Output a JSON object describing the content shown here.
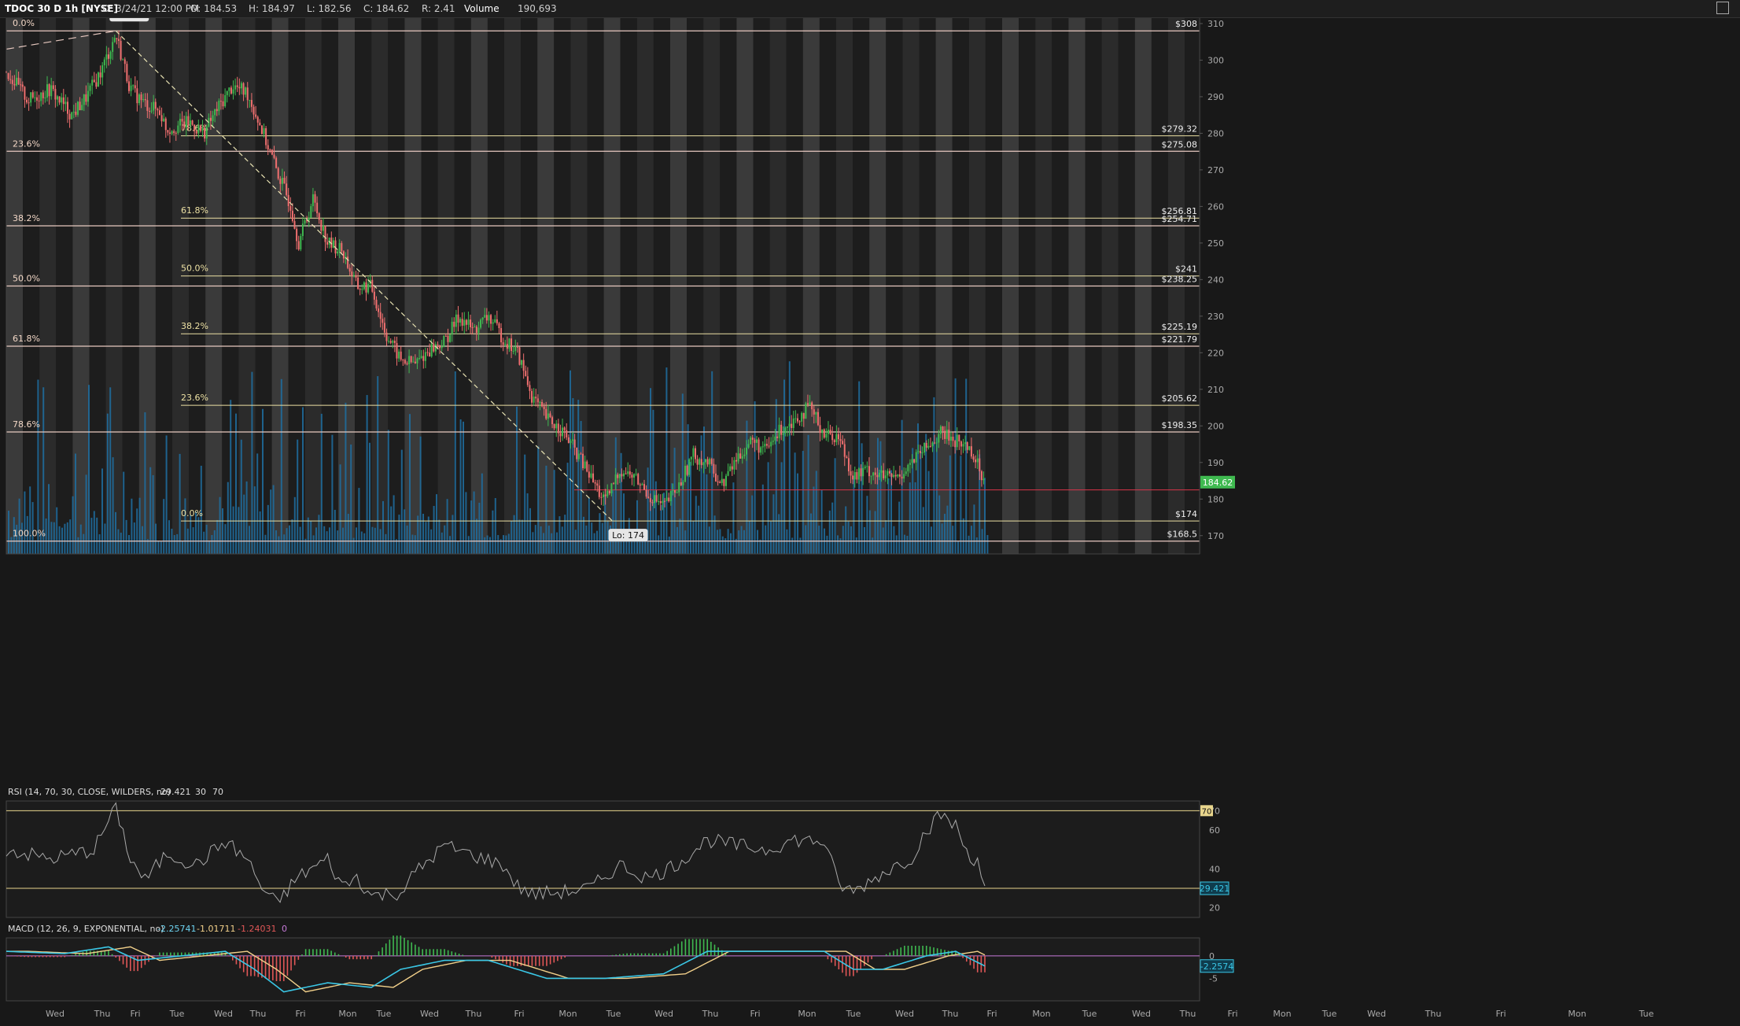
{
  "header": {
    "symbol": "TDOC 30 D 1h [NYSE]",
    "date": "D: 3/24/21 12:00 PM",
    "open": "O: 184.53",
    "high": "H: 184.97",
    "low": "L: 182.56",
    "close": "C: 184.62",
    "range": "R: 2.41",
    "volume_label": "Volume",
    "volume_value": "190,693"
  },
  "chart_data": {
    "type": "candlestick",
    "price_axis": {
      "ylim": [
        165,
        313
      ],
      "ticks": [
        "310",
        "300",
        "290",
        "280",
        "270",
        "260",
        "250",
        "240",
        "230",
        "220",
        "210",
        "200",
        "190",
        "180",
        "170"
      ]
    },
    "x_day_labels": [
      "Wed",
      "Thu",
      "Fri",
      "Tue",
      "Wed",
      "Thu",
      "Fri",
      "Mon",
      "Tue",
      "Wed",
      "Thu",
      "Fri",
      "Mon",
      "Tue",
      "Wed",
      "Thu",
      "Fri",
      "Mon",
      "Tue",
      "Wed",
      "Thu",
      "Fri",
      "Mon",
      "Tue",
      "Wed",
      "Thu",
      "Fri",
      "Mon",
      "Tue",
      "Wed",
      "Thu",
      "Fri",
      "Mon",
      "Tue"
    ],
    "price_path": [
      [
        0,
        297
      ],
      [
        3,
        289
      ],
      [
        6,
        292
      ],
      [
        9,
        285
      ],
      [
        11,
        290
      ],
      [
        13,
        297
      ],
      [
        15,
        307
      ],
      [
        17,
        292
      ],
      [
        19,
        288
      ],
      [
        21,
        286
      ],
      [
        22,
        281
      ],
      [
        25,
        283
      ],
      [
        27,
        280
      ],
      [
        29,
        287
      ],
      [
        31,
        293
      ],
      [
        33,
        291
      ],
      [
        35,
        281
      ],
      [
        37,
        270
      ],
      [
        39,
        260
      ],
      [
        40,
        250
      ],
      [
        42,
        262
      ],
      [
        44,
        250
      ],
      [
        46,
        248
      ],
      [
        48,
        238
      ],
      [
        50,
        238
      ],
      [
        52,
        225
      ],
      [
        54,
        218
      ],
      [
        56,
        217
      ],
      [
        58,
        221
      ],
      [
        60,
        223
      ],
      [
        62,
        230
      ],
      [
        64,
        226
      ],
      [
        66,
        230
      ],
      [
        68,
        224
      ],
      [
        70,
        220
      ],
      [
        72,
        208
      ],
      [
        74,
        202
      ],
      [
        76,
        199
      ],
      [
        78,
        193
      ],
      [
        80,
        186
      ],
      [
        82,
        179
      ],
      [
        84,
        188
      ],
      [
        86,
        186
      ],
      [
        88,
        181
      ],
      [
        90,
        178
      ],
      [
        92,
        183
      ],
      [
        94,
        192
      ],
      [
        96,
        190
      ],
      [
        98,
        184
      ],
      [
        100,
        191
      ],
      [
        102,
        196
      ],
      [
        104,
        193
      ],
      [
        106,
        199
      ],
      [
        108,
        202
      ],
      [
        110,
        205
      ],
      [
        112,
        198
      ],
      [
        114,
        197
      ],
      [
        116,
        186
      ],
      [
        118,
        188
      ],
      [
        120,
        186
      ],
      [
        122,
        186
      ],
      [
        124,
        190
      ],
      [
        126,
        194
      ],
      [
        128,
        198
      ],
      [
        130,
        196
      ],
      [
        132,
        194
      ],
      [
        134,
        184.6
      ]
    ],
    "last_price_label": "184.62",
    "last_price_line": 182.5,
    "hi_label": "Hi: 308",
    "lo_label": "Lo: 174",
    "fib_left": [
      {
        "pct": "0.0%",
        "price": 308
      },
      {
        "pct": "23.6%",
        "price": 275.08
      },
      {
        "pct": "38.2%",
        "price": 254.71
      },
      {
        "pct": "50.0%",
        "price": 238.25
      },
      {
        "pct": "61.8%",
        "price": 221.79
      },
      {
        "pct": "78.6%",
        "price": 198.35
      },
      {
        "pct": "100.0%",
        "price": 168.5
      }
    ],
    "fib_inner": [
      {
        "pct": "78.6%",
        "price": 279.32
      },
      {
        "pct": "61.8%",
        "price": 256.81
      },
      {
        "pct": "50.0%",
        "price": 241
      },
      {
        "pct": "38.2%",
        "price": 225.19
      },
      {
        "pct": "23.6%",
        "price": 205.62
      },
      {
        "pct": "0.0%",
        "price": 174
      }
    ],
    "right_level_labels": [
      {
        "text": "$308",
        "price": 308
      },
      {
        "text": "$279.32",
        "price": 279.32
      },
      {
        "text": "$275.08",
        "price": 275.08
      },
      {
        "text": "$256.81",
        "price": 256.81
      },
      {
        "text": "$254.71",
        "price": 254.71
      },
      {
        "text": "$241",
        "price": 241
      },
      {
        "text": "$238.25",
        "price": 238.25
      },
      {
        "text": "$225.19",
        "price": 225.19
      },
      {
        "text": "$221.79",
        "price": 221.79
      },
      {
        "text": "$205.62",
        "price": 205.62
      },
      {
        "text": "$198.35",
        "price": 198.35
      },
      {
        "text": "$174",
        "price": 174
      },
      {
        "text": "$168.5",
        "price": 168.5
      }
    ],
    "rsi": {
      "label": "RSI (14, 70, 30, CLOSE, WILDERS, no)",
      "value": "29.421",
      "ob": "70",
      "os": "30",
      "ticks": [
        "70",
        "60",
        "40",
        "20"
      ],
      "path": [
        [
          0,
          50
        ],
        [
          6,
          45
        ],
        [
          12,
          50
        ],
        [
          15,
          72
        ],
        [
          17,
          45
        ],
        [
          19,
          34
        ],
        [
          22,
          48
        ],
        [
          26,
          42
        ],
        [
          30,
          54
        ],
        [
          33,
          45
        ],
        [
          35,
          30
        ],
        [
          37,
          22
        ],
        [
          40,
          36
        ],
        [
          44,
          45
        ],
        [
          46,
          31
        ],
        [
          48,
          36
        ],
        [
          50,
          26
        ],
        [
          54,
          28
        ],
        [
          56,
          38
        ],
        [
          60,
          52
        ],
        [
          64,
          47
        ],
        [
          68,
          42
        ],
        [
          70,
          31
        ],
        [
          72,
          27
        ],
        [
          76,
          28
        ],
        [
          80,
          30
        ],
        [
          84,
          42
        ],
        [
          88,
          35
        ],
        [
          92,
          43
        ],
        [
          96,
          55
        ],
        [
          100,
          52
        ],
        [
          104,
          50
        ],
        [
          108,
          55
        ],
        [
          112,
          54
        ],
        [
          114,
          32
        ],
        [
          116,
          28
        ],
        [
          120,
          38
        ],
        [
          124,
          46
        ],
        [
          126,
          60
        ],
        [
          128,
          68
        ],
        [
          130,
          62
        ],
        [
          132,
          45
        ],
        [
          133,
          46
        ],
        [
          134,
          29.4
        ]
      ]
    },
    "macd": {
      "label": "MACD (12, 26, 9, EXPONENTIAL, no)",
      "value": "-2.25741",
      "avg": "-1.01711",
      "diff": "-1.24031",
      "zero": "0",
      "ticks": [
        "0",
        "-5"
      ],
      "right_value": "-2.2574",
      "path": [
        [
          0,
          1
        ],
        [
          8,
          0.5
        ],
        [
          14,
          2
        ],
        [
          18,
          -1
        ],
        [
          24,
          0
        ],
        [
          30,
          1
        ],
        [
          34,
          -3
        ],
        [
          38,
          -8
        ],
        [
          44,
          -6
        ],
        [
          50,
          -7
        ],
        [
          54,
          -3
        ],
        [
          60,
          -1
        ],
        [
          66,
          -1
        ],
        [
          70,
          -3
        ],
        [
          74,
          -5
        ],
        [
          82,
          -5
        ],
        [
          90,
          -4
        ],
        [
          96,
          1
        ],
        [
          100,
          1
        ],
        [
          106,
          1
        ],
        [
          112,
          1
        ],
        [
          116,
          -3
        ],
        [
          120,
          -3
        ],
        [
          126,
          0
        ],
        [
          130,
          1
        ],
        [
          134,
          -2.26
        ]
      ]
    }
  }
}
